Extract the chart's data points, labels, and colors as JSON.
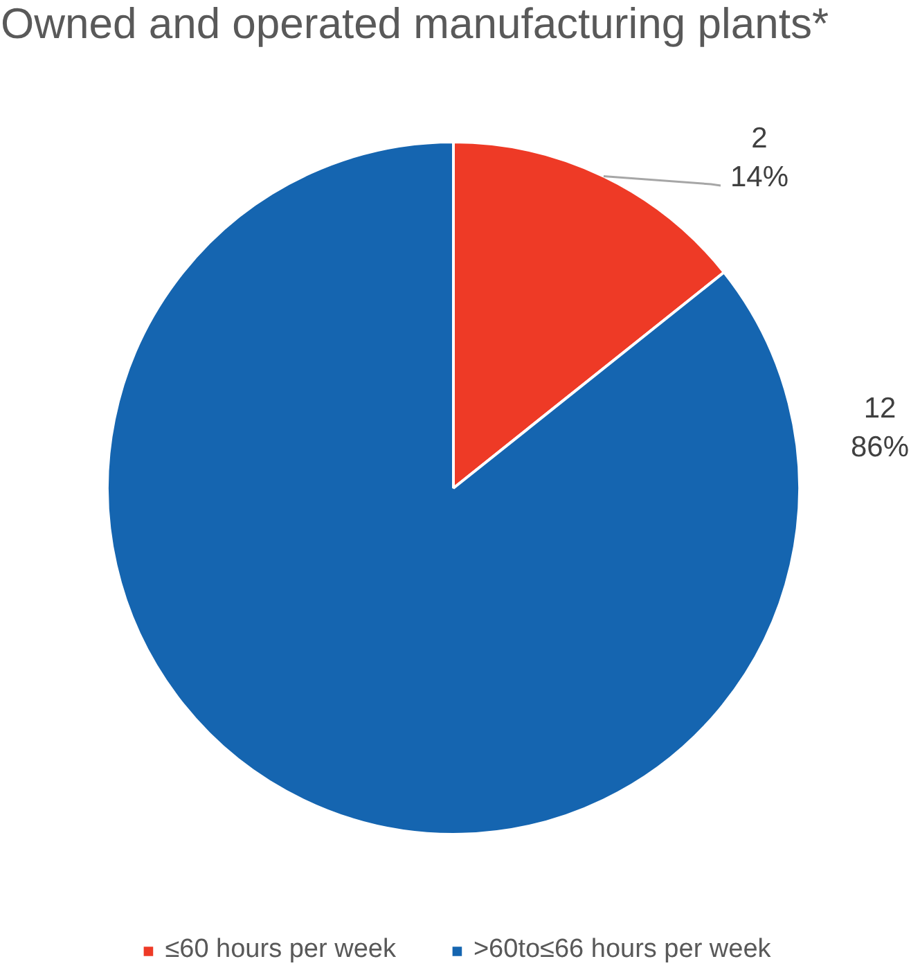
{
  "chart_data": {
    "type": "pie",
    "title": "Owned and operated manufacturing plants*",
    "categories": [
      "≤60 hours per week",
      ">60to≤66 hours per week"
    ],
    "values": [
      2,
      12
    ],
    "colors": [
      "#ee3a26",
      "#1565b0"
    ],
    "value_labels": [
      "2\n14%",
      "12\n86%"
    ],
    "legend": "bottom"
  }
}
